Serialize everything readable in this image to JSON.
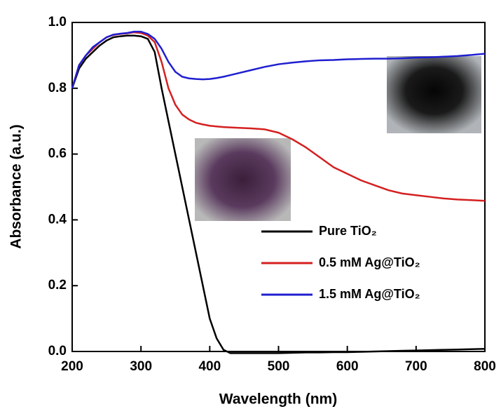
{
  "chart_data": {
    "type": "line",
    "x_label": "Wavelength (nm)",
    "y_label": "Absorbance (a.u.)",
    "x": [
      200,
      210,
      220,
      230,
      240,
      250,
      260,
      270,
      280,
      290,
      300,
      310,
      320,
      330,
      340,
      350,
      360,
      370,
      380,
      390,
      400,
      410,
      420,
      430,
      440,
      460,
      480,
      500,
      520,
      540,
      560,
      580,
      600,
      620,
      640,
      660,
      680,
      700,
      720,
      740,
      760,
      780,
      800
    ],
    "series": [
      {
        "name": "Pure TiO₂",
        "color": "#000000",
        "values": [
          0.8,
          0.86,
          0.89,
          0.91,
          0.93,
          0.945,
          0.955,
          0.958,
          0.96,
          0.96,
          0.958,
          0.95,
          0.91,
          0.8,
          0.7,
          0.6,
          0.5,
          0.4,
          0.3,
          0.2,
          0.1,
          0.04,
          0.005,
          -0.005,
          -0.005,
          -0.005,
          -0.005,
          -0.005,
          -0.004,
          -0.003,
          -0.003,
          -0.002,
          -0.002,
          -0.001,
          0,
          0.001,
          0.002,
          0.003,
          0.004,
          0.005,
          0.006,
          0.007,
          0.008
        ]
      },
      {
        "name": "0.5 mM Ag@TiO₂",
        "color": "#d42020",
        "values": [
          0.8,
          0.87,
          0.9,
          0.92,
          0.94,
          0.955,
          0.962,
          0.965,
          0.967,
          0.97,
          0.968,
          0.96,
          0.94,
          0.88,
          0.8,
          0.75,
          0.72,
          0.705,
          0.695,
          0.69,
          0.686,
          0.684,
          0.682,
          0.681,
          0.68,
          0.678,
          0.675,
          0.665,
          0.645,
          0.62,
          0.59,
          0.56,
          0.54,
          0.52,
          0.505,
          0.49,
          0.48,
          0.475,
          0.47,
          0.465,
          0.462,
          0.46,
          0.458
        ]
      },
      {
        "name": "1.5 mM Ag@TiO₂",
        "color": "#1f1fd0",
        "values": [
          0.8,
          0.87,
          0.9,
          0.925,
          0.94,
          0.955,
          0.963,
          0.966,
          0.968,
          0.972,
          0.972,
          0.965,
          0.95,
          0.92,
          0.88,
          0.85,
          0.835,
          0.83,
          0.828,
          0.827,
          0.828,
          0.831,
          0.835,
          0.84,
          0.845,
          0.855,
          0.865,
          0.873,
          0.878,
          0.882,
          0.885,
          0.886,
          0.888,
          0.889,
          0.89,
          0.89,
          0.891,
          0.893,
          0.894,
          0.896,
          0.898,
          0.901,
          0.905
        ]
      }
    ],
    "xlim": [
      200,
      800
    ],
    "xticks": [
      200,
      300,
      400,
      500,
      600,
      700,
      800
    ],
    "ylim": [
      0,
      1
    ],
    "yticks": [
      {
        "value": 0,
        "label": "0.0"
      },
      0.2,
      0.4,
      0.6,
      0.8,
      {
        "value": 1,
        "label": "1.0"
      }
    ],
    "legend": "lower right"
  }
}
